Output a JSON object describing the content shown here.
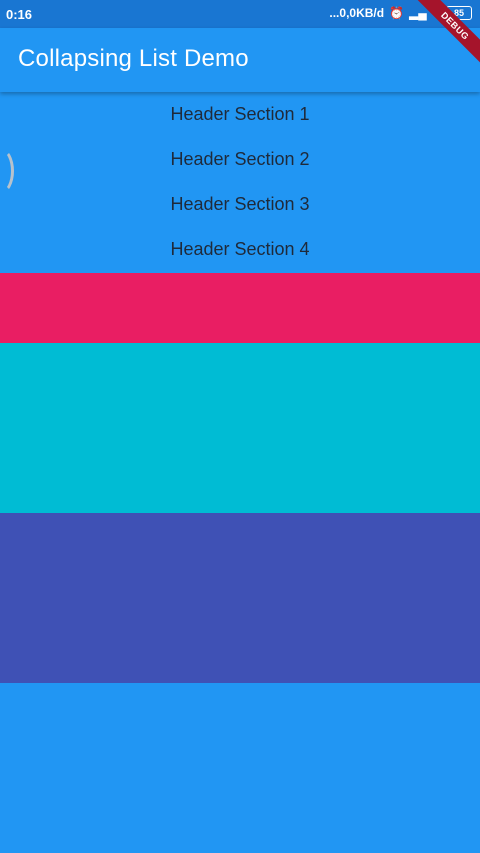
{
  "status_bar": {
    "time": "0:16",
    "network_speed": "...0,0KB/d",
    "battery": "85"
  },
  "app_bar": {
    "title": "Collapsing List Demo",
    "debug_label": "DEBUG"
  },
  "headers": [
    {
      "label": "Header Section 1"
    },
    {
      "label": "Header Section 2"
    },
    {
      "label": "Header Section 3"
    },
    {
      "label": "Header Section 4"
    }
  ],
  "colors": {
    "app_blue": "#2196F3",
    "pink": "#E91E63",
    "cyan": "#00BCD4",
    "indigo": "#3F51B5"
  }
}
